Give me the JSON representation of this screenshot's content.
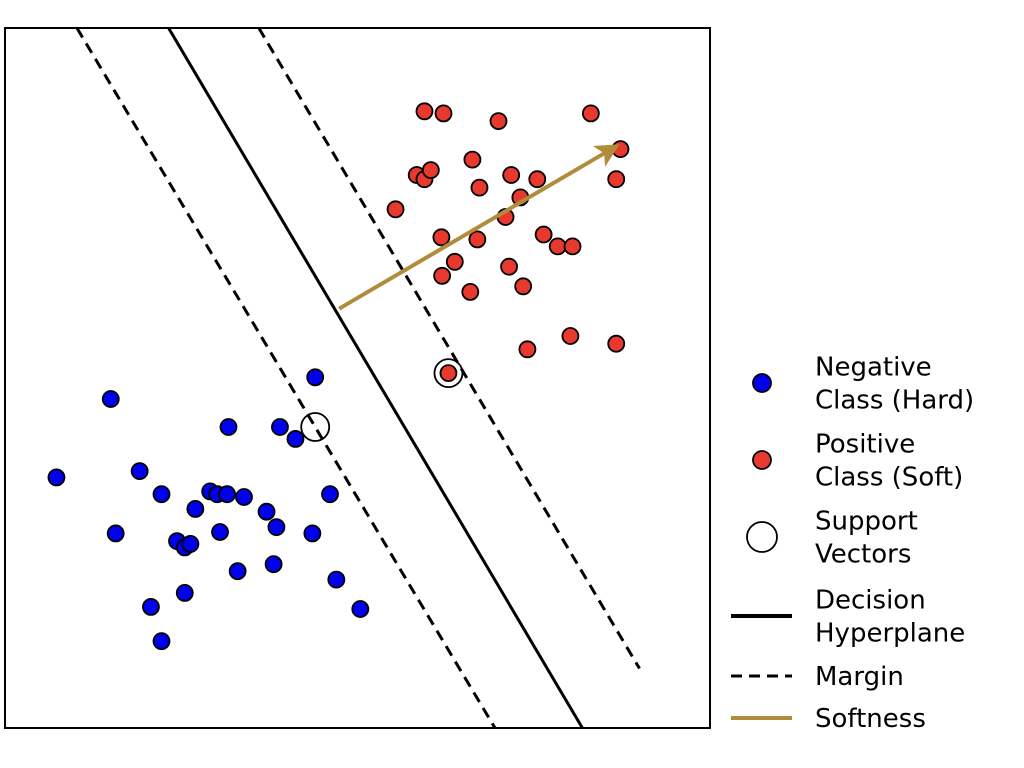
{
  "chart_data": {
    "type": "scatter",
    "title": "",
    "xlabel": "",
    "ylabel": "",
    "xlim": [
      0,
      10
    ],
    "ylim": [
      0,
      10
    ],
    "grid": false,
    "legend_placement": "right",
    "series": [
      {
        "name": "Negative Class (Hard)",
        "color": "#0000ee",
        "points": [
          [
            4.4,
            5.01
          ],
          [
            1.5,
            4.7
          ],
          [
            3.17,
            4.3
          ],
          [
            3.9,
            4.3
          ],
          [
            4.12,
            4.13
          ],
          [
            0.73,
            3.58
          ],
          [
            1.91,
            3.67
          ],
          [
            2.22,
            3.34
          ],
          [
            2.91,
            3.38
          ],
          [
            3.01,
            3.34
          ],
          [
            3.15,
            3.34
          ],
          [
            3.39,
            3.3
          ],
          [
            4.61,
            3.34
          ],
          [
            2.7,
            3.13
          ],
          [
            3.71,
            3.09
          ],
          [
            1.57,
            2.78
          ],
          [
            3.05,
            2.8
          ],
          [
            3.85,
            2.87
          ],
          [
            4.36,
            2.78
          ],
          [
            2.44,
            2.67
          ],
          [
            2.55,
            2.58
          ],
          [
            2.63,
            2.63
          ],
          [
            3.3,
            2.24
          ],
          [
            3.81,
            2.34
          ],
          [
            4.7,
            2.12
          ],
          [
            2.07,
            1.73
          ],
          [
            2.55,
            1.93
          ],
          [
            5.04,
            1.7
          ],
          [
            2.22,
            1.24
          ]
        ]
      },
      {
        "name": "Positive Class (Soft)",
        "color": "#e8392f",
        "points": [
          [
            5.95,
            8.81
          ],
          [
            6.22,
            8.78
          ],
          [
            7.0,
            8.67
          ],
          [
            8.31,
            8.78
          ],
          [
            8.73,
            8.27
          ],
          [
            6.63,
            8.12
          ],
          [
            5.84,
            7.9
          ],
          [
            5.95,
            7.84
          ],
          [
            6.04,
            7.97
          ],
          [
            7.18,
            7.9
          ],
          [
            7.55,
            7.84
          ],
          [
            8.67,
            7.84
          ],
          [
            6.73,
            7.72
          ],
          [
            7.31,
            7.58
          ],
          [
            5.54,
            7.41
          ],
          [
            7.1,
            7.3
          ],
          [
            6.19,
            7.01
          ],
          [
            6.7,
            6.98
          ],
          [
            7.64,
            7.05
          ],
          [
            7.84,
            6.88
          ],
          [
            8.05,
            6.88
          ],
          [
            6.38,
            6.66
          ],
          [
            7.15,
            6.59
          ],
          [
            6.2,
            6.46
          ],
          [
            6.6,
            6.23
          ],
          [
            7.35,
            6.31
          ],
          [
            8.02,
            5.6
          ],
          [
            7.41,
            5.41
          ],
          [
            8.67,
            5.49
          ],
          [
            6.29,
            5.07
          ]
        ]
      }
    ],
    "support_vectors": [
      [
        4.4,
        4.3
      ],
      [
        6.29,
        5.07
      ]
    ],
    "decision_hyperplane": [
      [
        2.32,
        10.0
      ],
      [
        8.19,
        0.0
      ]
    ],
    "margins": [
      [
        [
          1.02,
          10.0
        ],
        [
          6.95,
          0.0
        ]
      ],
      [
        [
          3.6,
          10.0
        ],
        [
          9.0,
          0.85
        ]
      ]
    ],
    "softness_arrow": {
      "from": [
        4.74,
        5.99
      ],
      "to": [
        8.67,
        8.31
      ]
    },
    "legend": [
      {
        "type": "marker",
        "color": "#0000ee",
        "label_lines": [
          "Negative",
          "Class (Hard)"
        ]
      },
      {
        "type": "marker",
        "color": "#e8392f",
        "label_lines": [
          "Positive",
          "Class (Soft)"
        ]
      },
      {
        "type": "ring",
        "color": "#ffffff",
        "label_lines": [
          "Support",
          "Vectors"
        ]
      },
      {
        "type": "solid",
        "color": "#000000",
        "label_lines": [
          "Decision",
          "Hyperplane"
        ]
      },
      {
        "type": "dashed",
        "color": "#000000",
        "label_lines": [
          "Margin"
        ]
      },
      {
        "type": "solid",
        "color": "#b08d3a",
        "label_lines": [
          "Softness"
        ]
      }
    ],
    "colors": {
      "hyperplane": "#000000",
      "margin": "#000000",
      "softness": "#b08d3a",
      "marker_edge": "#000000"
    }
  }
}
